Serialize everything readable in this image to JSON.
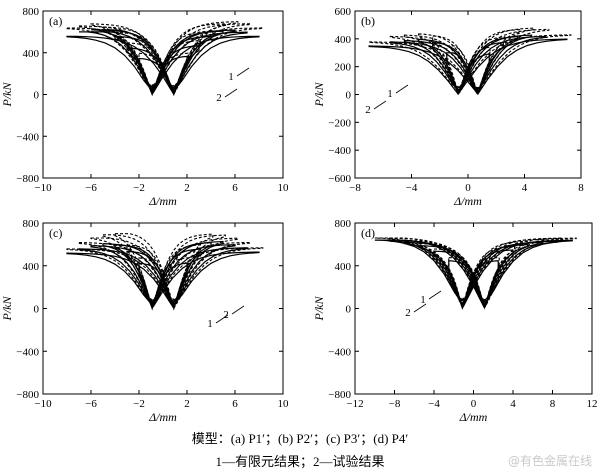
{
  "captions": {
    "models": "模型：(a) P1′；(b) P2′；(c) P3′；(d) P4′",
    "legend": "1—有限元结果；2—试验结果"
  },
  "watermark": "@有色金属在线",
  "chart_data": [
    {
      "id": "a",
      "type": "line",
      "panel_label": "(a)",
      "xlabel": "Δ/mm",
      "ylabel": "P/kN",
      "xlim": [
        -10,
        10
      ],
      "ylim": [
        -800,
        800
      ],
      "xticks": [
        -10,
        -6,
        -2,
        2,
        6,
        10
      ],
      "yticks": [
        -800,
        -400,
        0,
        400,
        800
      ],
      "curve_labels": [
        "1",
        "2"
      ],
      "series": [
        {
          "name": "1",
          "style": "solid",
          "amplitudes": [
            2,
            3,
            4,
            5,
            6,
            7,
            8
          ],
          "peak_pos": [
            370,
            470,
            560,
            610,
            620,
            600,
            560
          ],
          "peak_neg": [
            -350,
            -450,
            -560,
            -620,
            -640,
            -620,
            -560
          ],
          "yield": 220
        },
        {
          "name": "2",
          "style": "dashed",
          "amplitudes": [
            2,
            3,
            4,
            5,
            6,
            7,
            8
          ],
          "peak_pos": [
            400,
            520,
            610,
            680,
            700,
            680,
            640
          ],
          "peak_neg": [
            -400,
            -500,
            -600,
            -650,
            -680,
            -660,
            -640
          ],
          "yield": 240
        }
      ]
    },
    {
      "id": "b",
      "type": "line",
      "panel_label": "(b)",
      "xlabel": "Δ/mm",
      "ylabel": "P/kN",
      "xlim": [
        -8,
        8
      ],
      "ylim": [
        -600,
        600
      ],
      "xticks": [
        -8,
        -4,
        0,
        4,
        8
      ],
      "yticks": [
        -600,
        -400,
        -200,
        0,
        200,
        400,
        600
      ],
      "curve_labels": [
        "1",
        "2"
      ],
      "series": [
        {
          "name": "1",
          "style": "solid",
          "amplitudes": [
            1.5,
            2.5,
            3.5,
            4.5,
            5.5,
            7
          ],
          "peak_pos": [
            300,
            380,
            420,
            430,
            420,
            400
          ],
          "peak_neg": [
            -320,
            -380,
            -400,
            -390,
            -380,
            -350
          ],
          "yield": 180
        },
        {
          "name": "2",
          "style": "dashed",
          "amplitudes": [
            1.5,
            2.5,
            3.5,
            4.5,
            5.5,
            7
          ],
          "peak_pos": [
            350,
            420,
            470,
            480,
            470,
            430
          ],
          "peak_neg": [
            -380,
            -430,
            -440,
            -430,
            -420,
            -380
          ],
          "yield": 200
        }
      ]
    },
    {
      "id": "c",
      "type": "line",
      "panel_label": "(c)",
      "xlabel": "Δ/mm",
      "ylabel": "P/kN",
      "xlim": [
        -10,
        10
      ],
      "ylim": [
        -800,
        800
      ],
      "xticks": [
        -10,
        -6,
        -2,
        2,
        6,
        10
      ],
      "yticks": [
        -800,
        -400,
        0,
        400,
        800
      ],
      "curve_labels": [
        "1",
        "2"
      ],
      "series": [
        {
          "name": "1",
          "style": "solid",
          "amplitudes": [
            2,
            3,
            4,
            5,
            6,
            7,
            8
          ],
          "peak_pos": [
            430,
            560,
            620,
            630,
            600,
            570,
            530
          ],
          "peak_neg": [
            -430,
            -540,
            -600,
            -610,
            -590,
            -560,
            -520
          ],
          "yield": 220
        },
        {
          "name": "2",
          "style": "dashed",
          "amplitudes": [
            2,
            3,
            4,
            5,
            6,
            7,
            8
          ],
          "peak_pos": [
            480,
            600,
            700,
            690,
            660,
            620,
            570
          ],
          "peak_neg": [
            -480,
            -600,
            -720,
            -700,
            -670,
            -620,
            -560
          ],
          "yield": 250
        }
      ]
    },
    {
      "id": "d",
      "type": "line",
      "panel_label": "(d)",
      "xlabel": "Δ/mm",
      "ylabel": "P/kN",
      "xlim": [
        -12,
        12
      ],
      "ylim": [
        -800,
        800
      ],
      "xticks": [
        -12,
        -8,
        -4,
        0,
        4,
        8,
        12
      ],
      "yticks": [
        -800,
        -400,
        0,
        400,
        800
      ],
      "curve_labels": [
        "1",
        "2"
      ],
      "series": [
        {
          "name": "1",
          "style": "solid",
          "amplitudes": [
            2.5,
            4,
            5.5,
            7,
            8.5,
            10
          ],
          "peak_pos": [
            450,
            550,
            600,
            620,
            630,
            640
          ],
          "peak_neg": [
            -450,
            -540,
            -590,
            -620,
            -640,
            -650
          ],
          "yield": 300
        },
        {
          "name": "2",
          "style": "dashed",
          "amplitudes": [
            2.5,
            4,
            5.5,
            7,
            8.5,
            10
          ],
          "peak_pos": [
            480,
            580,
            630,
            650,
            660,
            660
          ],
          "peak_neg": [
            -480,
            -560,
            -610,
            -640,
            -660,
            -670
          ],
          "yield": 320
        }
      ]
    }
  ]
}
